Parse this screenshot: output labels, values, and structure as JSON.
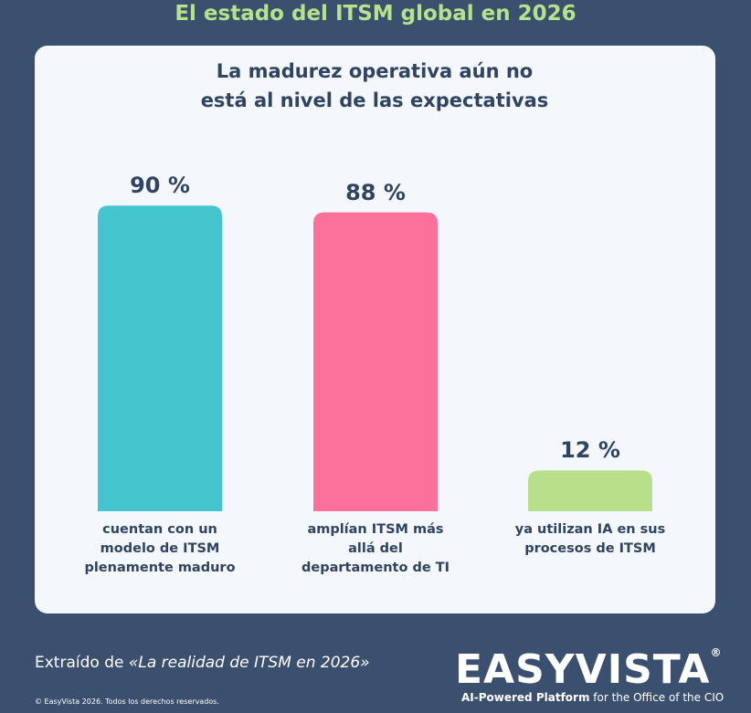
{
  "header": {
    "title": "El estado del ITSM global en 2026"
  },
  "chart_data": {
    "type": "bar",
    "title": "La madurez operativa aún no está al nivel de las expectativas",
    "categories": [
      "cuentan con un modelo de ITSM plenamente maduro",
      "amplían ITSM más allá del departamento de TI",
      "ya utilizan IA en sus procesos de ITSM"
    ],
    "values": [
      90,
      88,
      12
    ],
    "value_labels": [
      "90 %",
      "88 %",
      "12 %"
    ],
    "colors": [
      "#44c4cd",
      "#fc719b",
      "#b8e08b"
    ]
  },
  "footer": {
    "source_prefix": "Extraído de",
    "source_title": "«La realidad de ITSM en 2026»",
    "copyright": "© EasyVista 2026. Todos los derechos reservados.",
    "logo": "EASYVISTA",
    "logo_mark": "®",
    "tagline_bold": "AI-Powered Platform",
    "tagline_rest": "for the Office of the CIO"
  }
}
